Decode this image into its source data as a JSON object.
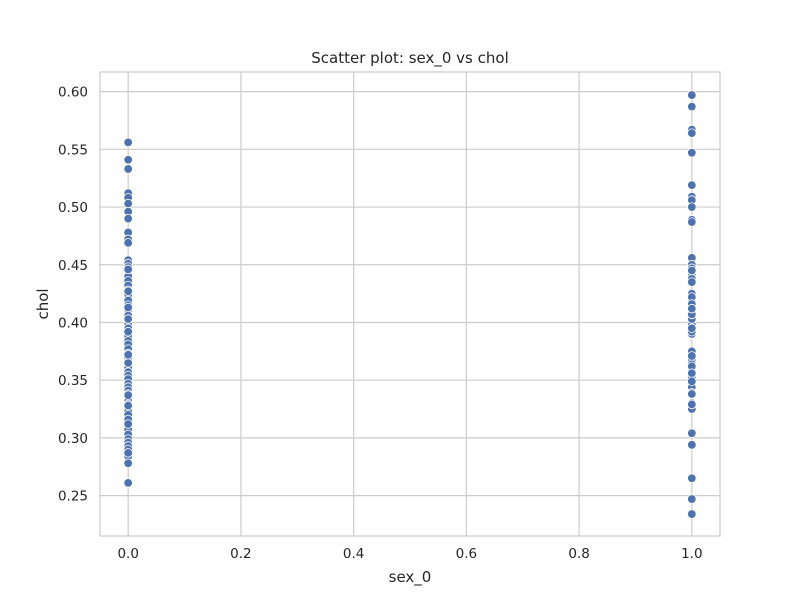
{
  "chart_data": {
    "type": "scatter",
    "title": "Scatter plot: sex_0 vs chol",
    "xlabel": "sex_0",
    "ylabel": "chol",
    "xlim": [
      -0.05,
      1.05
    ],
    "ylim": [
      0.215,
      0.617
    ],
    "xticks": [
      0.0,
      0.2,
      0.4,
      0.6,
      0.8,
      1.0
    ],
    "xtick_labels": [
      "0.0",
      "0.2",
      "0.4",
      "0.6",
      "0.8",
      "1.0"
    ],
    "yticks": [
      0.25,
      0.3,
      0.35,
      0.4,
      0.45,
      0.5,
      0.55,
      0.6
    ],
    "ytick_labels": [
      "0.25",
      "0.30",
      "0.35",
      "0.40",
      "0.45",
      "0.50",
      "0.55",
      "0.60"
    ],
    "grid": true,
    "marker_color": "#4c72b0",
    "series": [
      {
        "x": [
          0,
          0,
          0,
          0,
          0,
          0,
          0,
          0,
          0,
          0,
          0,
          0,
          0,
          0,
          0,
          0,
          0,
          0,
          0,
          0,
          0,
          0,
          0,
          0,
          0,
          0,
          0,
          0,
          0,
          0,
          0,
          0,
          0,
          0,
          0,
          0,
          0,
          0,
          0,
          0,
          0,
          0,
          0,
          0,
          0,
          0,
          0,
          0,
          0,
          0,
          0,
          0,
          0,
          0,
          0,
          0,
          0,
          0,
          0,
          0,
          0,
          0,
          0,
          0,
          0,
          0,
          0,
          0,
          0,
          0,
          0
        ],
        "y": [
          0.556,
          0.541,
          0.533,
          0.512,
          0.508,
          0.503,
          0.496,
          0.49,
          0.478,
          0.472,
          0.469,
          0.454,
          0.451,
          0.448,
          0.445,
          0.44,
          0.436,
          0.432,
          0.428,
          0.424,
          0.419,
          0.415,
          0.411,
          0.406,
          0.402,
          0.398,
          0.395,
          0.392,
          0.388,
          0.384,
          0.381,
          0.377,
          0.373,
          0.369,
          0.365,
          0.361,
          0.357,
          0.354,
          0.351,
          0.347,
          0.344,
          0.341,
          0.338,
          0.335,
          0.332,
          0.329,
          0.326,
          0.323,
          0.32,
          0.316,
          0.307,
          0.303,
          0.299,
          0.296,
          0.293,
          0.29,
          0.287,
          0.284,
          0.278,
          0.261,
          0.365,
          0.372,
          0.392,
          0.403,
          0.413,
          0.427,
          0.446,
          0.337,
          0.328,
          0.312,
          0.287
        ]
      },
      {
        "x": [
          1,
          1,
          1,
          1,
          1,
          1,
          1,
          1,
          1,
          1,
          1,
          1,
          1,
          1,
          1,
          1,
          1,
          1,
          1,
          1,
          1,
          1,
          1,
          1,
          1,
          1,
          1,
          1,
          1,
          1,
          1,
          1,
          1,
          1,
          1,
          1,
          1,
          1,
          1,
          1,
          1,
          1,
          1,
          1,
          1,
          1,
          1,
          1,
          1,
          1,
          1,
          1,
          1,
          1,
          1,
          1,
          1,
          1,
          1,
          1
        ],
        "y": [
          0.597,
          0.587,
          0.567,
          0.564,
          0.547,
          0.519,
          0.509,
          0.506,
          0.489,
          0.487,
          0.456,
          0.45,
          0.447,
          0.445,
          0.441,
          0.438,
          0.425,
          0.421,
          0.418,
          0.414,
          0.41,
          0.406,
          0.402,
          0.398,
          0.394,
          0.39,
          0.375,
          0.367,
          0.364,
          0.361,
          0.358,
          0.355,
          0.352,
          0.347,
          0.344,
          0.339,
          0.33,
          0.327,
          0.325,
          0.304,
          0.294,
          0.265,
          0.247,
          0.234,
          0.422,
          0.416,
          0.403,
          0.392,
          0.362,
          0.356,
          0.349,
          0.338,
          0.329,
          0.407,
          0.412,
          0.445,
          0.435,
          0.395,
          0.371,
          0.5
        ]
      }
    ]
  }
}
